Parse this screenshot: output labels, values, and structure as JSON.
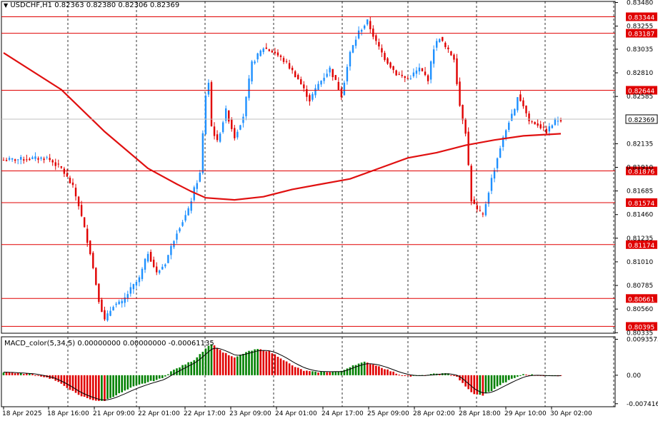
{
  "header": {
    "symbol": "USDCHF,H1",
    "open": "0.82363",
    "high": "0.82380",
    "low": "0.82306",
    "close": "0.82369"
  },
  "macd_header": {
    "name": "MACD_color(5,34,5)",
    "values": "0.00000000 0.00000000 -0.00061135"
  },
  "colors": {
    "bull": "#1e90ff",
    "bear": "#e00000",
    "ma": "#e01010",
    "level": "#e00000",
    "macd_pos": "#008000",
    "macd_neg": "#e00000",
    "signal": "#000000",
    "grid": "#000000"
  },
  "price_axis": {
    "ticks": [
      "0.83480",
      "0.83255",
      "0.83035",
      "0.82810",
      "0.82585",
      "0.82135",
      "0.81910",
      "0.81685",
      "0.81460",
      "0.81235",
      "0.81010",
      "0.80785",
      "0.80560",
      "0.80335"
    ],
    "range": [
      0.8033,
      0.8349
    ]
  },
  "levels": [
    {
      "label": "0.83344",
      "value": 0.83344
    },
    {
      "label": "0.83187",
      "value": 0.83187
    },
    {
      "label": "0.82644",
      "value": 0.82644
    },
    {
      "label": "0.81876",
      "value": 0.81876
    },
    {
      "label": "0.81574",
      "value": 0.81574
    },
    {
      "label": "0.81174",
      "value": 0.81174
    },
    {
      "label": "0.80661",
      "value": 0.80661
    },
    {
      "label": "0.80395",
      "value": 0.80395
    }
  ],
  "current_price": {
    "label": "0.82369",
    "value": 0.82369
  },
  "macd_axis": {
    "ticks": [
      {
        "label": "0.0093575",
        "value": 0.0093575
      },
      {
        "label": "0.00",
        "value": 0
      },
      {
        "label": "-0.007416",
        "value": -0.007416
      }
    ],
    "range": [
      -0.0082,
      0.01
    ]
  },
  "time_axis": {
    "labels": [
      "18 Apr 2025",
      "18 Apr 16:00",
      "21 Apr 09:00",
      "22 Apr 01:00",
      "22 Apr 17:00",
      "23 Apr 09:00",
      "24 Apr 01:00",
      "24 Apr 17:00",
      "25 Apr 09:00",
      "28 Apr 02:00",
      "28 Apr 18:00",
      "29 Apr 10:00",
      "30 Apr 02:00"
    ]
  },
  "chart_data": {
    "type": "candlestick",
    "title": "USDCHF,H1",
    "x_labels": [
      "18 Apr 2025",
      "18 Apr 16:00",
      "21 Apr 09:00",
      "22 Apr 01:00",
      "22 Apr 17:00",
      "23 Apr 09:00",
      "24 Apr 01:00",
      "24 Apr 17:00",
      "25 Apr 09:00",
      "28 Apr 02:00",
      "28 Apr 18:00",
      "29 Apr 10:00",
      "30 Apr 02:00"
    ],
    "ylim": [
      0.80335,
      0.8348
    ],
    "price_anchors": [
      [
        0,
        0.8198
      ],
      [
        8,
        0.8199
      ],
      [
        15,
        0.82
      ],
      [
        20,
        0.819
      ],
      [
        24,
        0.8172
      ],
      [
        26,
        0.8155
      ],
      [
        30,
        0.811
      ],
      [
        33,
        0.8065
      ],
      [
        35,
        0.8045
      ],
      [
        38,
        0.806
      ],
      [
        41,
        0.8062
      ],
      [
        44,
        0.8075
      ],
      [
        47,
        0.8085
      ],
      [
        50,
        0.811
      ],
      [
        53,
        0.809
      ],
      [
        56,
        0.81
      ],
      [
        60,
        0.813
      ],
      [
        64,
        0.815
      ],
      [
        66,
        0.817
      ],
      [
        68,
        0.8185
      ],
      [
        70,
        0.826
      ],
      [
        71,
        0.8272
      ],
      [
        72,
        0.823
      ],
      [
        74,
        0.8215
      ],
      [
        77,
        0.8245
      ],
      [
        80,
        0.822
      ],
      [
        83,
        0.824
      ],
      [
        86,
        0.829
      ],
      [
        90,
        0.8305
      ],
      [
        94,
        0.83
      ],
      [
        98,
        0.829
      ],
      [
        102,
        0.8275
      ],
      [
        106,
        0.8255
      ],
      [
        109,
        0.827
      ],
      [
        113,
        0.8285
      ],
      [
        117,
        0.826
      ],
      [
        120,
        0.83
      ],
      [
        123,
        0.832
      ],
      [
        126,
        0.833
      ],
      [
        129,
        0.831
      ],
      [
        132,
        0.8295
      ],
      [
        136,
        0.828
      ],
      [
        140,
        0.8275
      ],
      [
        144,
        0.8285
      ],
      [
        147,
        0.8275
      ],
      [
        149,
        0.8305
      ],
      [
        151,
        0.8315
      ],
      [
        153,
        0.8305
      ],
      [
        156,
        0.8295
      ],
      [
        158,
        0.825
      ],
      [
        160,
        0.8225
      ],
      [
        162,
        0.816
      ],
      [
        164,
        0.815
      ],
      [
        166,
        0.8145
      ],
      [
        169,
        0.818
      ],
      [
        172,
        0.821
      ],
      [
        175,
        0.8235
      ],
      [
        177,
        0.8245
      ],
      [
        178,
        0.826
      ],
      [
        180,
        0.825
      ],
      [
        182,
        0.8235
      ],
      [
        185,
        0.8232
      ],
      [
        188,
        0.8225
      ],
      [
        191,
        0.8235
      ],
      [
        193,
        0.8237
      ]
    ],
    "ma_line": [
      [
        0,
        0.83
      ],
      [
        20,
        0.8265
      ],
      [
        35,
        0.8225
      ],
      [
        50,
        0.819
      ],
      [
        60,
        0.8175
      ],
      [
        65,
        0.8168
      ],
      [
        70,
        0.8162
      ],
      [
        80,
        0.816
      ],
      [
        90,
        0.8163
      ],
      [
        100,
        0.817
      ],
      [
        110,
        0.8175
      ],
      [
        120,
        0.818
      ],
      [
        130,
        0.819
      ],
      [
        140,
        0.82
      ],
      [
        150,
        0.8205
      ],
      [
        160,
        0.8212
      ],
      [
        170,
        0.8217
      ],
      [
        180,
        0.8221
      ],
      [
        193,
        0.8223
      ]
    ],
    "macd_anchors": [
      [
        0,
        0.0008
      ],
      [
        10,
        0.0003
      ],
      [
        17,
        -0.001
      ],
      [
        22,
        -0.0032
      ],
      [
        26,
        -0.0052
      ],
      [
        30,
        -0.0062
      ],
      [
        33,
        -0.0068
      ],
      [
        35,
        -0.0066
      ],
      [
        40,
        -0.0048
      ],
      [
        45,
        -0.003
      ],
      [
        50,
        -0.0018
      ],
      [
        55,
        -0.0008
      ],
      [
        58,
        0.001
      ],
      [
        62,
        0.0025
      ],
      [
        66,
        0.004
      ],
      [
        70,
        0.007
      ],
      [
        72,
        0.0082
      ],
      [
        76,
        0.006
      ],
      [
        80,
        0.0045
      ],
      [
        84,
        0.006
      ],
      [
        88,
        0.0068
      ],
      [
        92,
        0.0062
      ],
      [
        96,
        0.0045
      ],
      [
        100,
        0.0025
      ],
      [
        104,
        0.0012
      ],
      [
        108,
        0.0008
      ],
      [
        113,
        0.0009
      ],
      [
        117,
        0.001
      ],
      [
        121,
        0.0026
      ],
      [
        125,
        0.0034
      ],
      [
        129,
        0.0026
      ],
      [
        133,
        0.0014
      ],
      [
        137,
        0.0002
      ],
      [
        141,
        -0.0003
      ],
      [
        145,
        -0.0001
      ],
      [
        150,
        0.0004
      ],
      [
        154,
        0.0004
      ],
      [
        157,
        -0.0004
      ],
      [
        160,
        -0.003
      ],
      [
        163,
        -0.005
      ],
      [
        166,
        -0.0052
      ],
      [
        169,
        -0.004
      ],
      [
        172,
        -0.0025
      ],
      [
        176,
        -0.001
      ],
      [
        180,
        0.0002
      ],
      [
        184,
        0.0001
      ],
      [
        188,
        -0.0002
      ],
      [
        193,
        -0.0001
      ]
    ],
    "macd_ylim": [
      -0.007416,
      0.0093575
    ],
    "levels": [
      0.83344,
      0.83187,
      0.82644,
      0.81876,
      0.81574,
      0.81174,
      0.80661,
      0.80395
    ],
    "current_price": 0.82369
  }
}
